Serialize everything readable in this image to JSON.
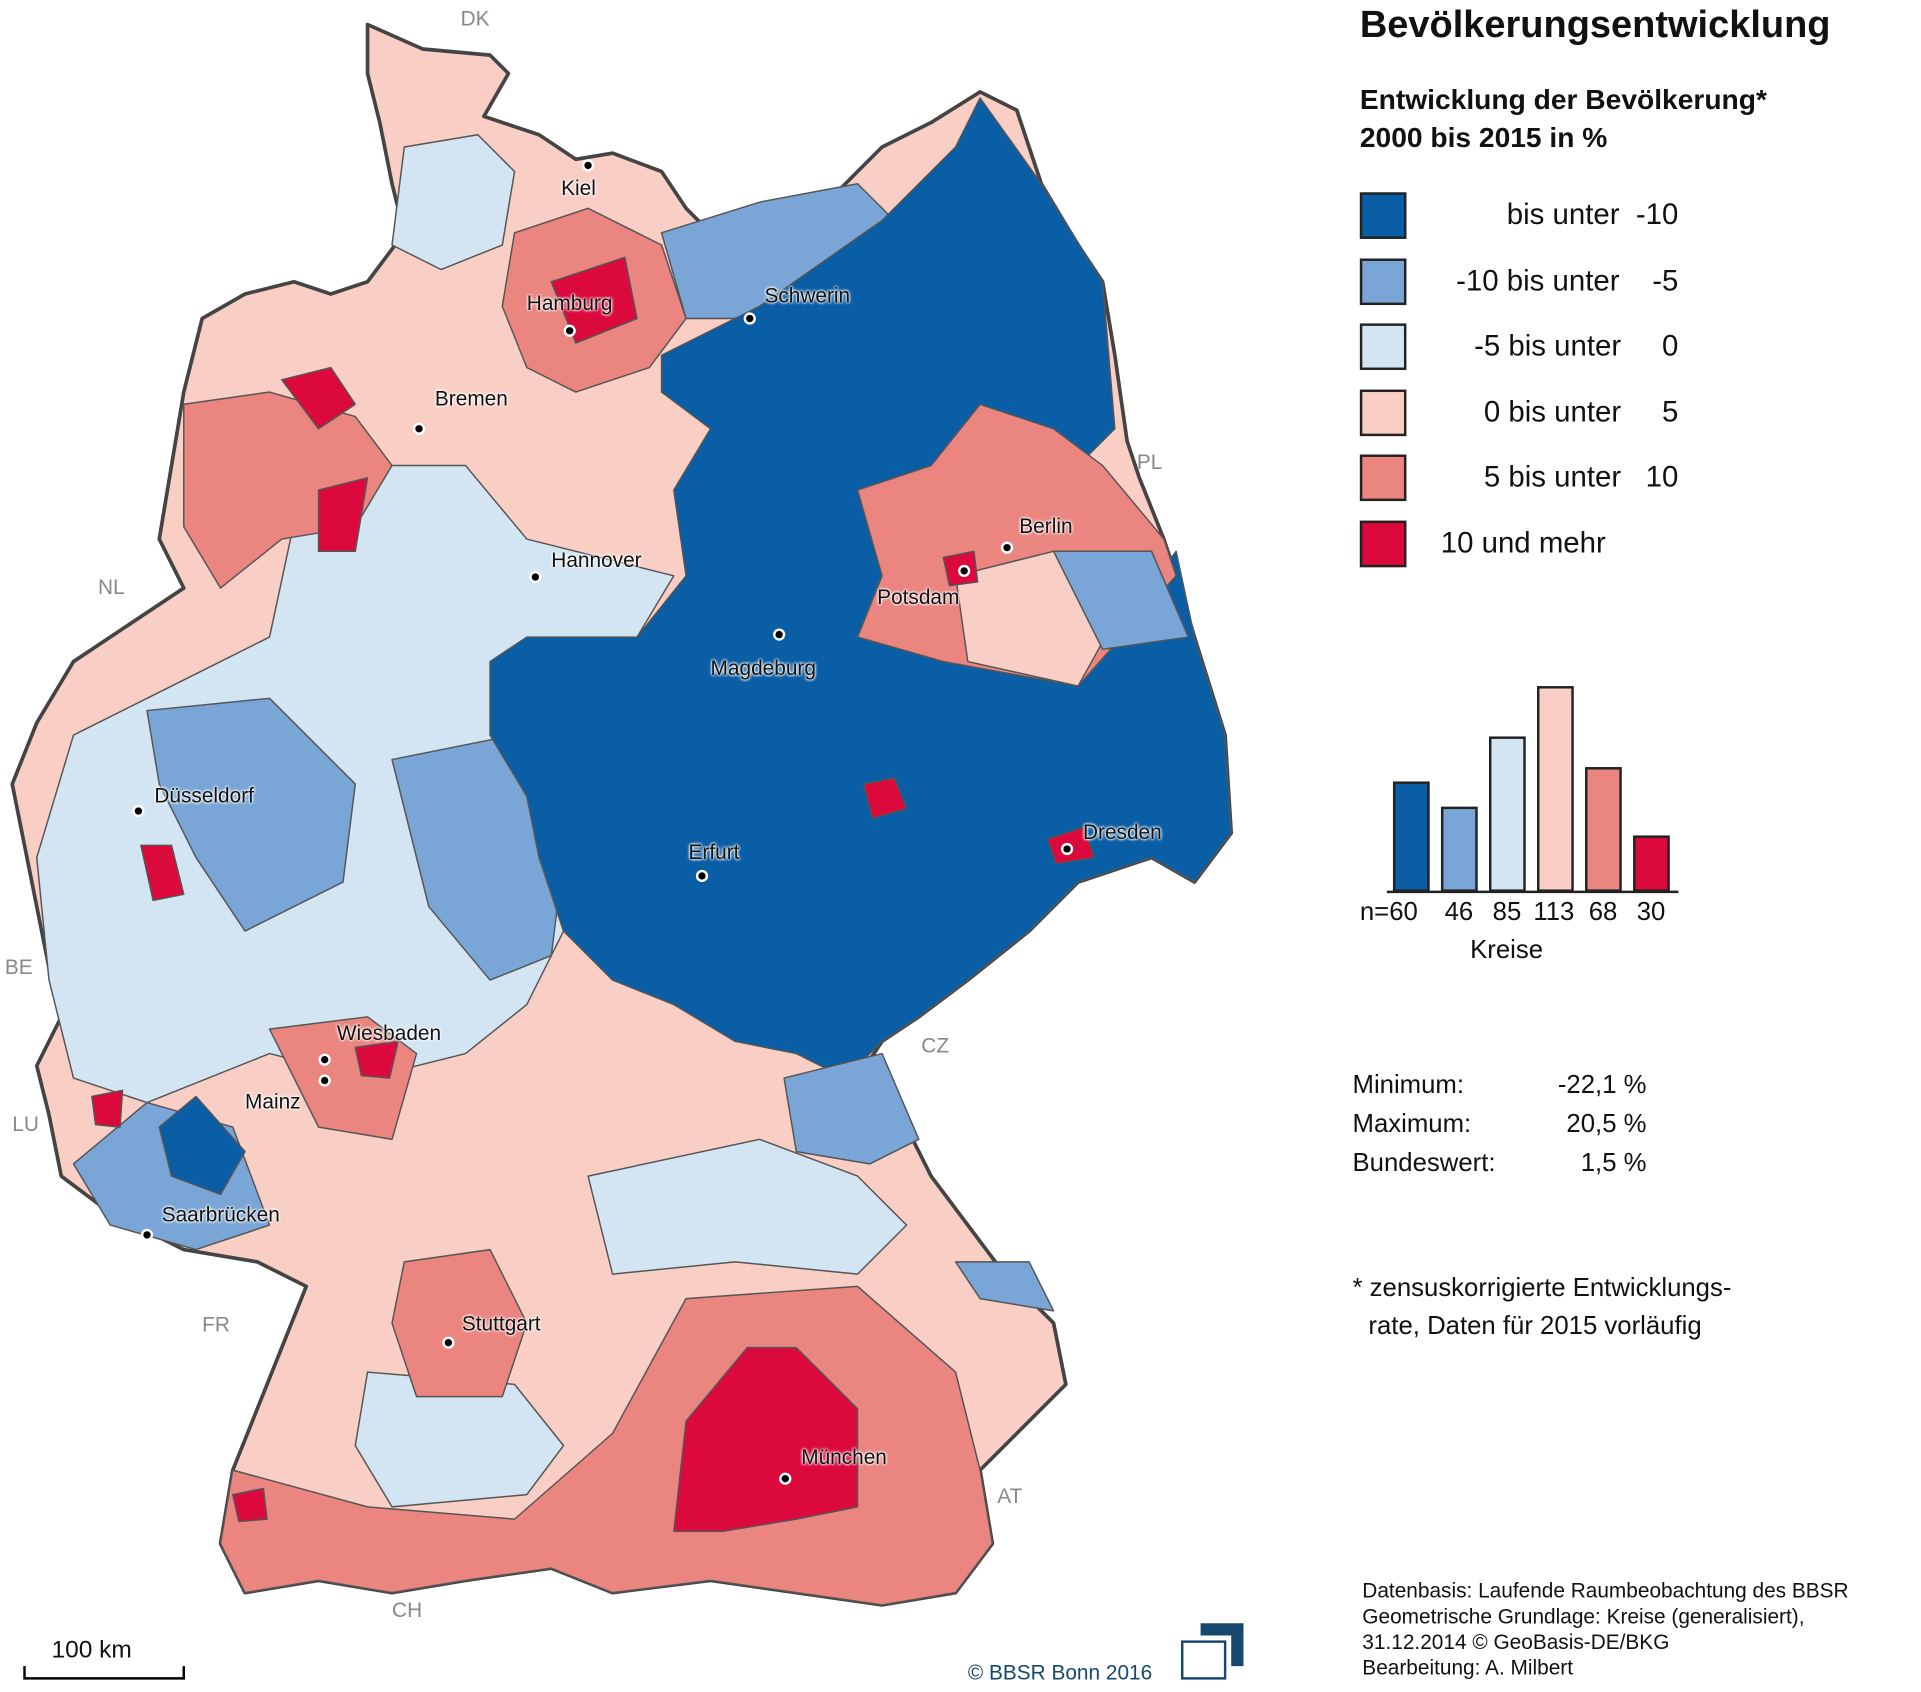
{
  "title": "Bevölkerungsentwicklung",
  "subtitle_line1": "Entwicklung der Bevölkerung*",
  "subtitle_line2": "2000 bis 2015 in %",
  "legend": [
    {
      "label": "bis unter  -10",
      "color": "#0a5ea6"
    },
    {
      "label": "-10 bis unter    -5",
      "color": "#79a6d6"
    },
    {
      "label": "-5 bis unter     0",
      "color": "#d3e4f3"
    },
    {
      "label": "0 bis unter     5",
      "color": "#f9cec4"
    },
    {
      "label": "5 bis unter   10",
      "color": "#ea8580"
    },
    {
      "label": "10 und mehr",
      "color": "#dc0a3c"
    }
  ],
  "histogram": {
    "values": [
      60,
      46,
      85,
      113,
      68,
      30
    ],
    "labels": [
      "n=60",
      "46",
      "85",
      "113",
      "68",
      "30"
    ],
    "xlabel": "Kreise"
  },
  "stats": [
    {
      "label": "Minimum:",
      "value": "-22,1 %"
    },
    {
      "label": "Maximum:",
      "value": "20,5 %"
    },
    {
      "label": "Bundeswert:",
      "value": "1,5 %"
    }
  ],
  "footnote_line1": "* zensuskorrigierte Entwicklungs-",
  "footnote_line2": "rate, Daten für 2015 vorläufig",
  "source": [
    "Datenbasis: Laufende Raumbeobachtung des BBSR",
    "Geometrische Grundlage: Kreise (generalisiert),",
    "31.12.2014 © GeoBasis-DE/BKG",
    "Bearbeitung: A. Milbert"
  ],
  "copyright": "© BBSR Bonn 2016",
  "scale_bar": "100 km",
  "cities": [
    "Kiel",
    "Hamburg",
    "Schwerin",
    "Bremen",
    "Hannover",
    "Berlin",
    "Potsdam",
    "Magdeburg",
    "Düsseldorf",
    "Erfurt",
    "Dresden",
    "Wiesbaden",
    "Mainz",
    "Saarbrücken",
    "Stuttgart",
    "München"
  ],
  "countries": [
    "DK",
    "PL",
    "NL",
    "BE",
    "LU",
    "FR",
    "CH",
    "AT",
    "CZ"
  ]
}
